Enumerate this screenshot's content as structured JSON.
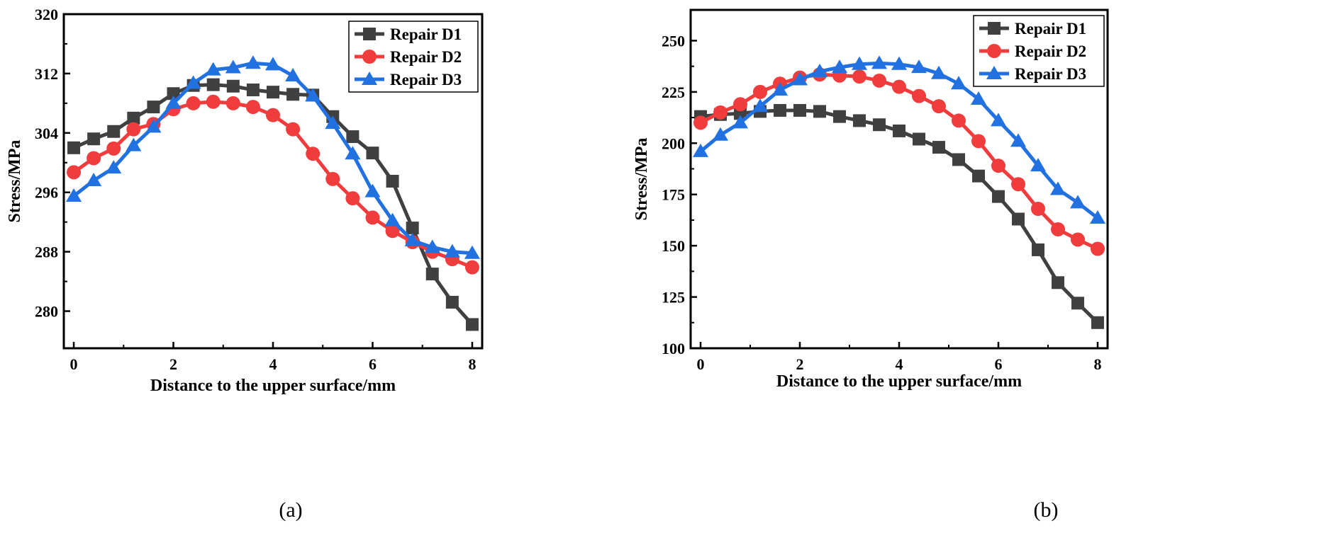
{
  "figure_captions": [
    "(a)",
    "(b)"
  ],
  "chart_data": [
    {
      "id": "a",
      "type": "line",
      "caption": "(a)",
      "title": "",
      "xlabel": "Distance to the upper surface/mm",
      "ylabel": "Stress/MPa",
      "xlim": [
        -0.2,
        8.2
      ],
      "ylim": [
        275,
        320
      ],
      "xticks": [
        0,
        2,
        4,
        6,
        8
      ],
      "yticks": [
        280,
        288,
        296,
        304,
        312,
        320
      ],
      "xtick_labels": [
        "0",
        "2",
        "4",
        "6",
        "8"
      ],
      "ytick_labels": [
        "280",
        "288",
        "296",
        "304",
        "312",
        "320"
      ],
      "legend_position": "top-right",
      "x": [
        0,
        0.4,
        0.8,
        1.2,
        1.6,
        2.0,
        2.4,
        2.8,
        3.2,
        3.6,
        4.0,
        4.4,
        4.8,
        5.2,
        5.6,
        6.0,
        6.4,
        6.8,
        7.2,
        7.6,
        8.0
      ],
      "series": [
        {
          "name": "Repair D1",
          "color": "#404040",
          "marker": "square",
          "values": [
            302.0,
            303.2,
            304.2,
            306.0,
            307.5,
            309.3,
            310.4,
            310.5,
            310.3,
            309.8,
            309.5,
            309.2,
            309.1,
            306.2,
            303.5,
            301.3,
            297.5,
            291.2,
            285.0,
            281.2,
            278.2
          ]
        },
        {
          "name": "Repair D2",
          "color": "#f03c3c",
          "marker": "circle",
          "values": [
            298.7,
            300.6,
            301.9,
            304.5,
            305.2,
            307.2,
            308.0,
            308.2,
            308.0,
            307.5,
            306.4,
            304.5,
            301.2,
            297.8,
            295.2,
            292.6,
            290.8,
            289.3,
            288.0,
            287.0,
            285.9
          ]
        },
        {
          "name": "Repair D3",
          "color": "#2271e0",
          "marker": "triangle",
          "values": [
            295.5,
            297.6,
            299.3,
            302.3,
            304.8,
            308.0,
            310.7,
            312.5,
            312.8,
            313.4,
            313.2,
            311.7,
            309.0,
            305.3,
            301.2,
            296.1,
            292.2,
            289.5,
            288.6,
            288.0,
            287.8
          ]
        }
      ]
    },
    {
      "id": "b",
      "type": "line",
      "caption": "(b)",
      "title": "",
      "xlabel": "Distance to the upper surface/mm",
      "ylabel": "Stress/MPa",
      "xlim": [
        -0.2,
        8.2
      ],
      "ylim": [
        100,
        265
      ],
      "xticks": [
        0,
        2,
        4,
        6,
        8
      ],
      "yticks": [
        100,
        125,
        150,
        175,
        200,
        225,
        250
      ],
      "xtick_labels": [
        "0",
        "2",
        "4",
        "6",
        "8"
      ],
      "ytick_labels": [
        "100",
        "125",
        "150",
        "175",
        "200",
        "225",
        "250"
      ],
      "legend_position": "top-right",
      "x": [
        0,
        0.4,
        0.8,
        1.2,
        1.6,
        2.0,
        2.4,
        2.8,
        3.2,
        3.6,
        4.0,
        4.4,
        4.8,
        5.2,
        5.6,
        6.0,
        6.4,
        6.8,
        7.2,
        7.6,
        8.0
      ],
      "series": [
        {
          "name": "Repair D1",
          "color": "#404040",
          "marker": "square",
          "values": [
            213,
            214,
            214.5,
            215.5,
            216,
            216,
            215.5,
            213,
            211,
            209,
            206,
            202,
            198,
            192,
            184,
            174,
            163,
            148,
            132,
            122,
            112.5
          ]
        },
        {
          "name": "Repair D2",
          "color": "#f03c3c",
          "marker": "circle",
          "values": [
            210,
            215,
            219,
            225,
            229,
            232,
            233.5,
            233,
            232.5,
            230.5,
            227.5,
            223,
            218,
            211,
            201,
            189,
            180,
            168,
            158,
            153,
            148.5
          ]
        },
        {
          "name": "Repair D3",
          "color": "#2271e0",
          "marker": "triangle",
          "values": [
            196,
            204,
            210,
            218,
            226,
            231,
            235,
            237,
            238.5,
            239,
            238.5,
            237,
            234,
            229,
            221.5,
            211,
            201,
            189,
            177.5,
            171,
            163.5
          ]
        }
      ]
    }
  ]
}
